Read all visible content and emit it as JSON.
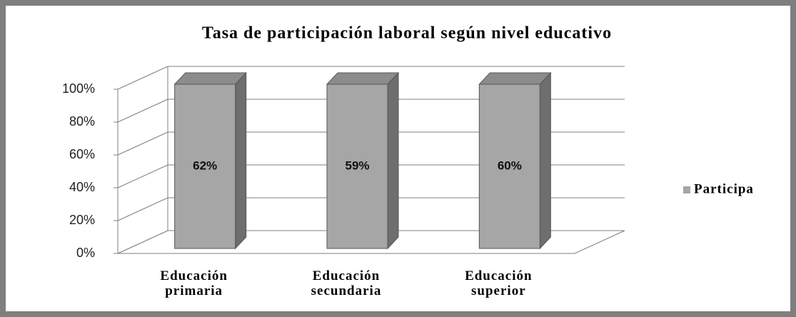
{
  "chart_data": {
    "type": "bar",
    "percent_stacked": true,
    "title": "Tasa de participación laboral según nivel educativo",
    "categories": [
      "Educación primaria",
      "Educación secundaria",
      "Educación superior"
    ],
    "series": [
      {
        "name": "Participa",
        "color": "#a6a6a6",
        "values": [
          62,
          59,
          60
        ],
        "value_labels": [
          "62%",
          "59%",
          "60%"
        ]
      }
    ],
    "ylim": [
      0,
      100
    ],
    "yticks": [
      {
        "value": 0,
        "label": "0%"
      },
      {
        "value": 20,
        "label": "20%"
      },
      {
        "value": 40,
        "label": "40%"
      },
      {
        "value": 60,
        "label": "60%"
      },
      {
        "value": 80,
        "label": "80%"
      },
      {
        "value": 100,
        "label": "100%"
      }
    ],
    "grid": true,
    "legend": "right"
  }
}
